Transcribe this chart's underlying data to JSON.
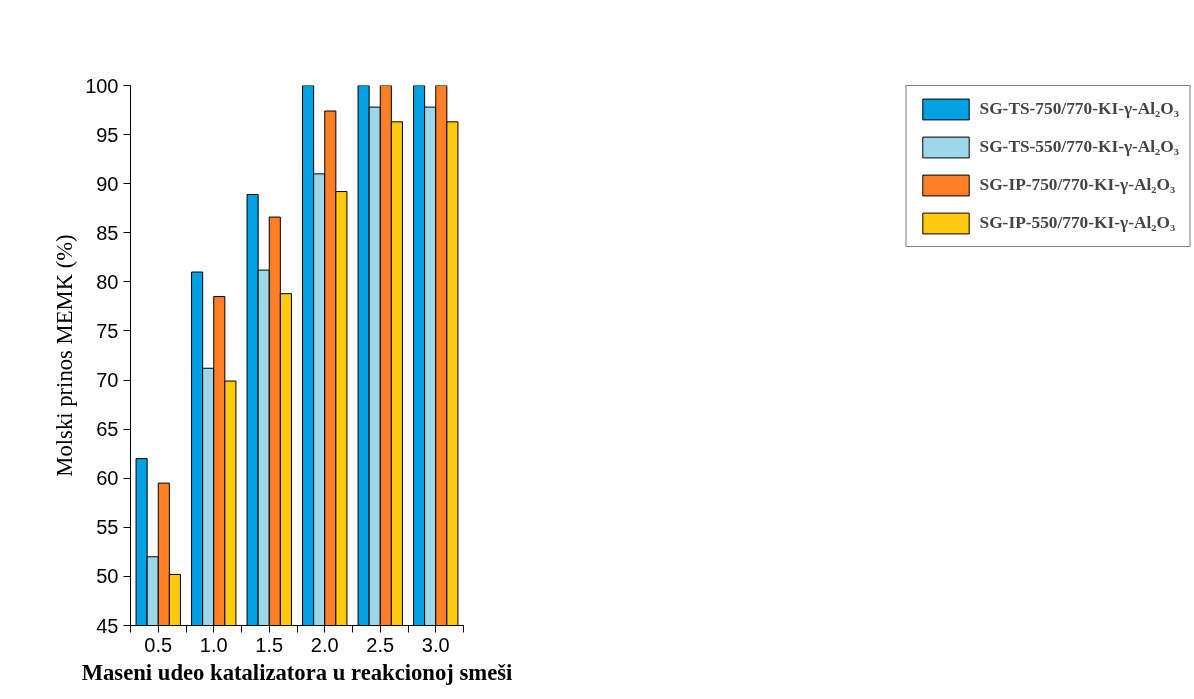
{
  "chart_data": {
    "type": "bar",
    "xlabel": "Maseni udeo katalizatora u reakcionoj smeši",
    "ylabel": "Molski prinos MEMK (%)",
    "x": [
      0.5,
      1.0,
      1.5,
      2.0,
      2.5,
      3.0
    ],
    "series": [
      {
        "name": "SG-TS-750/770-KI-γ-Al₂O₃",
        "color": "#00a0e3",
        "values": [
          62.0,
          81.0,
          88.9,
          100,
          100,
          100
        ]
      },
      {
        "name": "SG-TS-550/770-KI-γ-Al₂O₃",
        "color": "#9dd8ea",
        "values": [
          52.0,
          71.2,
          81.2,
          91.0,
          97.8,
          97.8
        ]
      },
      {
        "name": "SG-IP-750/770-KI-γ-Al₂O₃",
        "color": "#ff7f27",
        "values": [
          59.5,
          78.5,
          86.6,
          97.4,
          100,
          100
        ]
      },
      {
        "name": "SG-IP-550/770-KI-γ-Al₂O₃",
        "color": "#ffc90e",
        "values": [
          50.2,
          69.9,
          78.8,
          89.2,
          96.3,
          96.3
        ]
      }
    ],
    "xlim": [
      0.25,
      3.25
    ],
    "xticks": [
      {
        "value": 0.5,
        "label": "0.5"
      },
      {
        "value": 1.0,
        "label": "1.0"
      },
      {
        "value": 1.5,
        "label": "1.5"
      },
      {
        "value": 2.0,
        "label": "2.0"
      },
      {
        "value": 2.5,
        "label": "2.5"
      },
      {
        "value": 3.0,
        "label": "3.0"
      },
      {
        "value": 0.25,
        "label": null
      },
      {
        "value": 0.75,
        "label": null
      },
      {
        "value": 1.25,
        "label": null
      },
      {
        "value": 1.75,
        "label": null
      },
      {
        "value": 2.25,
        "label": null
      },
      {
        "value": 2.75,
        "label": null
      },
      {
        "value": 3.25,
        "label": null
      }
    ],
    "ylim": [
      45,
      100
    ],
    "yticks": [
      45,
      50,
      55,
      60,
      65,
      70,
      75,
      80,
      85,
      90,
      95,
      100
    ],
    "grid": false,
    "legend": "top right"
  }
}
